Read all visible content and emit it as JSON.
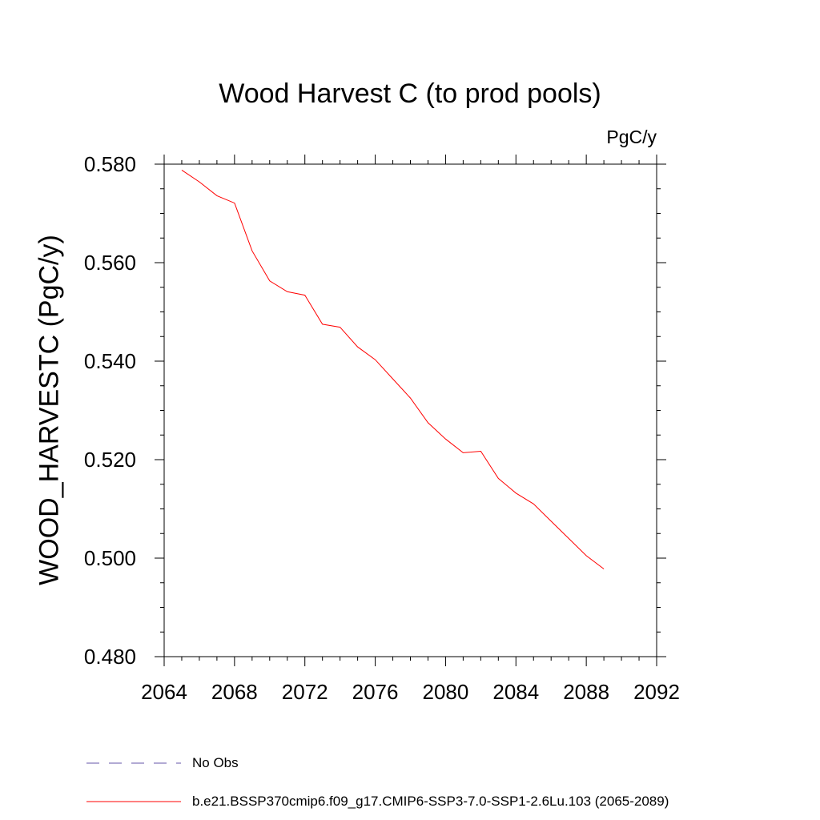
{
  "chart_data": {
    "type": "line",
    "title": "Wood Harvest C (to prod pools)",
    "units_label": "PgC/y",
    "xlabel": "",
    "ylabel": "WOOD_HARVESTC  (PgC/y)",
    "xlim": [
      2064,
      2092
    ],
    "ylim": [
      0.48,
      0.58
    ],
    "x_ticks": [
      2064,
      2068,
      2072,
      2076,
      2080,
      2084,
      2088,
      2092
    ],
    "x_tick_labels": [
      "2064",
      "2068",
      "2072",
      "2076",
      "2080",
      "2084",
      "2088",
      "2092"
    ],
    "y_ticks": [
      0.48,
      0.5,
      0.52,
      0.54,
      0.56,
      0.58
    ],
    "y_tick_labels": [
      "0.480",
      "0.500",
      "0.520",
      "0.540",
      "0.560",
      "0.580"
    ],
    "grid": false,
    "legend_placement": "bottom-left, below plot",
    "series": [
      {
        "name": "b.e21.BSSP370cmip6.f09_g17.CMIP6-SSP3-7.0-SSP1-2.6Lu.103 (2065-2089)",
        "color": "#ff0000",
        "style": "solid",
        "x": [
          2065,
          2066,
          2067,
          2068,
          2069,
          2070,
          2071,
          2072,
          2073,
          2074,
          2075,
          2076,
          2077,
          2078,
          2079,
          2080,
          2081,
          2082,
          2083,
          2084,
          2085,
          2086,
          2087,
          2088,
          2089
        ],
        "y": [
          0.5788,
          0.5764,
          0.5736,
          0.5721,
          0.5624,
          0.5563,
          0.5541,
          0.5534,
          0.5475,
          0.5469,
          0.5429,
          0.5403,
          0.5364,
          0.5325,
          0.5275,
          0.5242,
          0.5214,
          0.5217,
          0.5162,
          0.5132,
          0.511,
          0.5075,
          0.504,
          0.5005,
          0.4978
        ]
      }
    ],
    "legend": [
      {
        "label": "No Obs",
        "color": "#6655aa",
        "style": "dashed"
      },
      {
        "label": "b.e21.BSSP370cmip6.f09_g17.CMIP6-SSP3-7.0-SSP1-2.6Lu.103 (2065-2089)",
        "color": "#ff0000",
        "style": "solid"
      }
    ]
  }
}
